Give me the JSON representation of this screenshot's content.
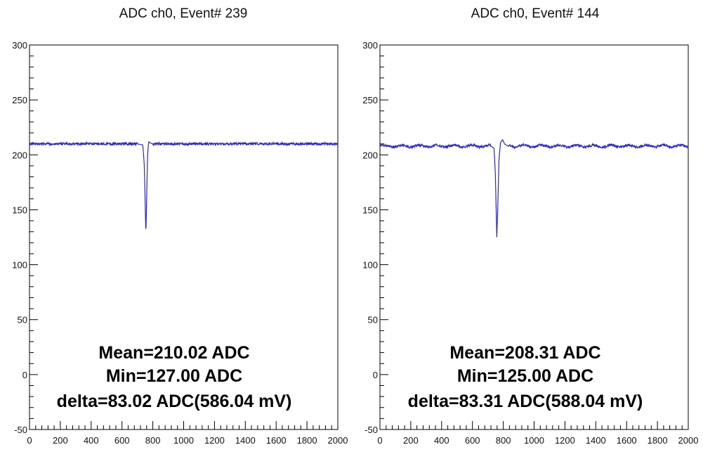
{
  "chart_data": [
    {
      "type": "line",
      "title": "ADC ch0, Event# 239",
      "xlim": [
        0,
        2000
      ],
      "ylim": [
        -50,
        300
      ],
      "x_ticks": [
        0,
        200,
        400,
        600,
        800,
        1000,
        1200,
        1400,
        1600,
        1800,
        2000
      ],
      "y_ticks": [
        -50,
        0,
        50,
        100,
        150,
        200,
        250,
        300
      ],
      "grid": false,
      "series": [
        {
          "color": "#2b2bb8",
          "baseline": 210,
          "points": [
            [
              0,
              210
            ],
            [
              700,
              210
            ],
            [
              735,
              209
            ],
            [
              745,
              190
            ],
            [
              750,
              158
            ],
            [
              755,
              127
            ],
            [
              760,
              160
            ],
            [
              766,
              200
            ],
            [
              773,
              212
            ],
            [
              780,
              211
            ],
            [
              800,
              210
            ],
            [
              2000,
              210
            ]
          ]
        }
      ],
      "stats": [
        "Mean=210.02 ADC",
        "Min=127.00 ADC",
        "delta=83.02 ADC(586.04 mV)"
      ]
    },
    {
      "type": "line",
      "title": "ADC ch0, Event# 144",
      "xlim": [
        0,
        2000
      ],
      "ylim": [
        -50,
        300
      ],
      "x_ticks": [
        0,
        200,
        400,
        600,
        800,
        1000,
        1200,
        1400,
        1600,
        1800,
        2000
      ],
      "y_ticks": [
        -50,
        0,
        50,
        100,
        150,
        200,
        250,
        300
      ],
      "grid": false,
      "series": [
        {
          "color": "#2b2bb8",
          "baseline": 208,
          "points": [
            [
              0,
              208
            ],
            [
              720,
              208
            ],
            [
              740,
              206
            ],
            [
              748,
              185
            ],
            [
              754,
              150
            ],
            [
              758,
              125
            ],
            [
              764,
              150
            ],
            [
              772,
              195
            ],
            [
              782,
              211
            ],
            [
              795,
              214
            ],
            [
              808,
              210
            ],
            [
              830,
              208
            ],
            [
              2000,
              208
            ]
          ]
        }
      ],
      "stats": [
        "Mean=208.31 ADC",
        "Min=125.00 ADC",
        "delta=83.31 ADC(588.04 mV)"
      ]
    }
  ]
}
